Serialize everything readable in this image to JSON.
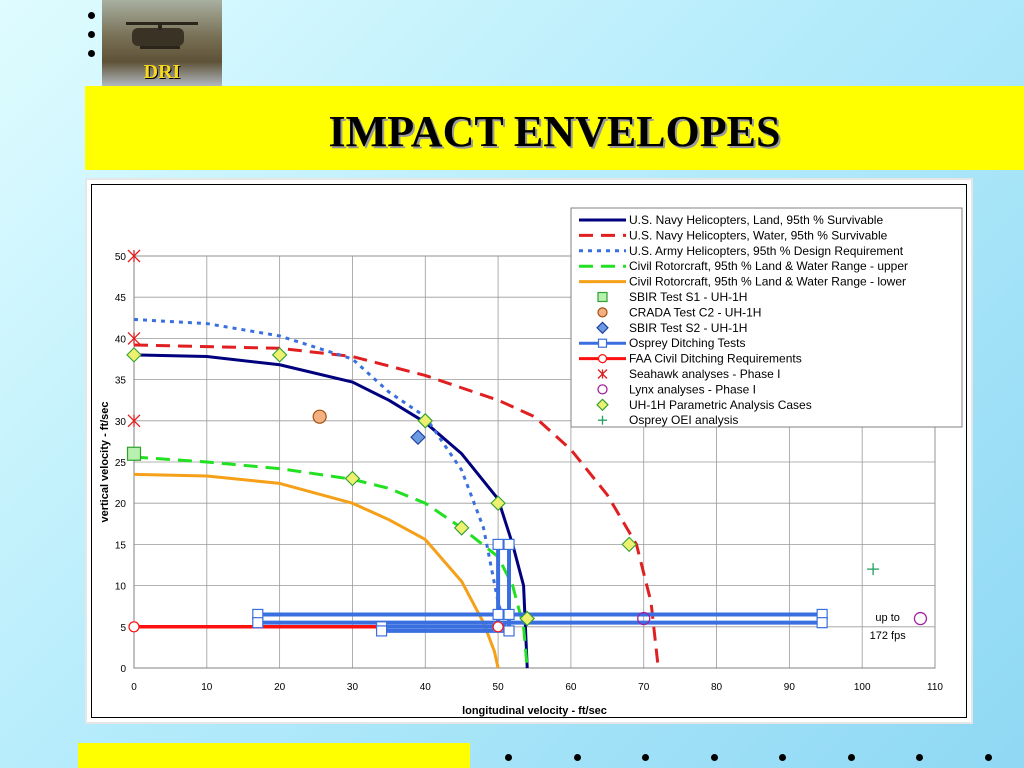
{
  "slide": {
    "title": "IMPACT ENVELOPES",
    "logo_text": "DRI",
    "colors": {
      "title_bar": "#ffff00",
      "background": "#b6ecfb"
    }
  },
  "chart_data": {
    "type": "line",
    "title": "",
    "xlabel": "longitudinal velocity - ft/sec",
    "ylabel": "vertical velocity - ft/sec",
    "xlim": [
      0,
      110
    ],
    "ylim": [
      0,
      50
    ],
    "xticks": [
      "0",
      "10",
      "20",
      "30",
      "40",
      "50",
      "60",
      "70",
      "80",
      "90",
      "100",
      "110"
    ],
    "yticks": [
      "0",
      "5",
      "10",
      "15",
      "20",
      "25",
      "30",
      "35",
      "40",
      "45",
      "50"
    ],
    "grid": true,
    "legend_position": "top-right",
    "series": [
      {
        "name": "U.S. Navy Helicopters, Land, 95th % Survivable",
        "kind": "line",
        "color": "#00007f",
        "dash": "solid",
        "x": [
          0,
          10,
          20,
          30,
          35,
          40,
          45,
          50,
          52,
          53.5,
          54
        ],
        "y": [
          38,
          37.8,
          36.8,
          34.7,
          32.5,
          29.8,
          26,
          20.5,
          15,
          10,
          0
        ]
      },
      {
        "name": "U.S. Navy Helicopters, Water, 95th % Survivable",
        "kind": "line",
        "color": "#e02020",
        "dash": "long",
        "x": [
          0,
          10,
          20,
          30,
          40,
          50,
          55,
          60,
          65,
          69,
          71,
          72
        ],
        "y": [
          39.2,
          39,
          38.8,
          37.8,
          35.5,
          32.5,
          30.5,
          26.5,
          21,
          15,
          8,
          0
        ]
      },
      {
        "name": "U.S. Army Helicopters, 95th % Design Requirement",
        "kind": "line",
        "color": "#3a6fe0",
        "dash": "short",
        "x": [
          0,
          10,
          20,
          30,
          35,
          40,
          45,
          48,
          50,
          51
        ],
        "y": [
          42.3,
          41.8,
          40.3,
          37.5,
          33.5,
          30.5,
          24,
          17,
          8,
          5
        ]
      },
      {
        "name": "Civil Rotorcraft, 95th % Land & Water Range - upper",
        "kind": "line",
        "color": "#22e022",
        "dash": "long",
        "x": [
          0,
          10,
          20,
          30,
          35,
          40,
          45,
          50,
          52,
          53.5,
          54
        ],
        "y": [
          25.6,
          25,
          24.2,
          22.9,
          21.8,
          20,
          17,
          13.5,
          10,
          5,
          0
        ]
      },
      {
        "name": "Civil Rotorcraft, 95th % Land & Water Range - lower",
        "kind": "line",
        "color": "#f5a018",
        "dash": "solid",
        "x": [
          0,
          10,
          20,
          30,
          35,
          40,
          45,
          48,
          49.5,
          50
        ],
        "y": [
          23.5,
          23.3,
          22.4,
          20,
          18,
          15.6,
          10.5,
          5.5,
          2,
          0
        ]
      },
      {
        "name": "SBIR Test S1 - UH-1H",
        "kind": "marker",
        "marker": "square",
        "color": "#30a030",
        "fill": "#b8f0b0",
        "x": [
          0
        ],
        "y": [
          26
        ]
      },
      {
        "name": "CRADA Test C2 - UH-1H",
        "kind": "marker",
        "marker": "circle",
        "color": "#a05010",
        "fill": "#f4b080",
        "x": [
          25.5
        ],
        "y": [
          30.5
        ]
      },
      {
        "name": "SBIR Test S2 - UH-1H",
        "kind": "marker",
        "marker": "diamond",
        "color": "#1a3aa0",
        "fill": "#6a9ae0",
        "x": [
          39
        ],
        "y": [
          28
        ]
      },
      {
        "name": "Osprey Ditching Tests",
        "kind": "line",
        "color": "#3a6fe0",
        "dash": "solid",
        "marker": "square",
        "x": [
          17
        ],
        "y": [
          6.5
        ]
      },
      {
        "name": "FAA Civil Ditching Requirements",
        "kind": "line",
        "color": "#ff1010",
        "dash": "solid",
        "marker": "circle",
        "x": [
          0,
          50
        ],
        "y": [
          5,
          5
        ]
      },
      {
        "name": "Seahawk analyses - Phase I",
        "kind": "marker",
        "marker": "asterisk",
        "color": "#e02020",
        "x": [
          0,
          0,
          0
        ],
        "y": [
          50,
          40,
          30
        ]
      },
      {
        "name": "Lynx analyses - Phase I",
        "kind": "marker",
        "marker": "circle-open",
        "color": "#a020a0",
        "x": [
          70,
          108
        ],
        "y": [
          6,
          6
        ]
      },
      {
        "name": "UH-1H Parametric Analysis Cases",
        "kind": "marker",
        "marker": "diamond",
        "color": "#30a030",
        "fill": "#eef070",
        "x": [
          0,
          20,
          30,
          40,
          45,
          50,
          54,
          68
        ],
        "y": [
          38,
          38,
          23,
          30,
          17,
          20,
          6,
          15
        ]
      },
      {
        "name": "Osprey OEI analysis",
        "kind": "marker",
        "marker": "plus",
        "color": "#20a060",
        "x": [
          101.5
        ],
        "y": [
          12
        ]
      }
    ],
    "osprey_segments": [
      {
        "x": [
          17,
          94.5
        ],
        "y": [
          6.5,
          6.5
        ]
      },
      {
        "x": [
          17,
          94.5
        ],
        "y": [
          5.5,
          5.5
        ]
      },
      {
        "x": [
          34,
          50
        ],
        "y": [
          5,
          5
        ]
      },
      {
        "x": [
          34,
          51.5
        ],
        "y": [
          4.5,
          4.5
        ]
      },
      {
        "x": [
          50,
          50
        ],
        "y": [
          5,
          15
        ]
      },
      {
        "x": [
          51.5,
          51.5
        ],
        "y": [
          4.5,
          15
        ]
      }
    ],
    "osprey_points": {
      "x": [
        17,
        17,
        94.5,
        94.5,
        34,
        34,
        50,
        50,
        50,
        51.5,
        51.5,
        51.5
      ],
      "y": [
        6.5,
        5.5,
        6.5,
        5.5,
        5,
        4.5,
        6.5,
        5,
        15,
        4.5,
        6.5,
        15
      ]
    },
    "annotations": [
      {
        "text": "up to",
        "x": 103.5,
        "y": 6.2
      },
      {
        "text": "172 fps",
        "x": 103.5,
        "y": 4.0
      }
    ]
  }
}
